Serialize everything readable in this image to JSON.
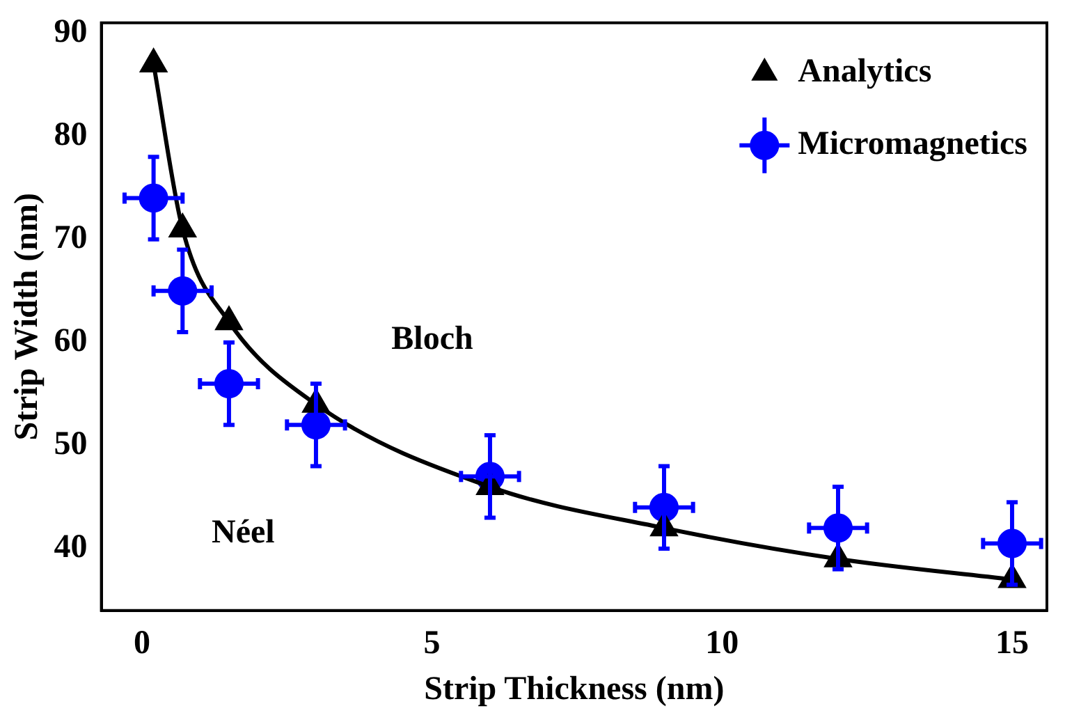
{
  "chart_data": {
    "type": "scatter",
    "xlabel": "Strip Thickness (nm)",
    "ylabel": "Strip Width (nm)",
    "xlim": [
      -0.7,
      15.6
    ],
    "xticks": [
      0,
      5,
      10,
      15
    ],
    "ylim": [
      34,
      91
    ],
    "yticks": [
      40,
      50,
      60,
      70,
      80,
      90
    ],
    "grid": false,
    "legend": "top right",
    "series": [
      {
        "name": "Analytics",
        "type": "line",
        "marker": "triangle",
        "color": "#000000",
        "x": [
          0.2,
          0.7,
          1.5,
          3,
          6,
          9,
          12,
          15
        ],
        "values": [
          87,
          71,
          62,
          54,
          46,
          42,
          39,
          37
        ]
      },
      {
        "name": "Micromagnetics",
        "marker": "circle",
        "color": "#0000ff",
        "x": [
          0.2,
          0.7,
          1.5,
          3,
          6,
          9,
          12,
          15
        ],
        "values": [
          74,
          65,
          56,
          52,
          47,
          44,
          42,
          40.5
        ],
        "errors": [
          4,
          4,
          4,
          4,
          4,
          4,
          4,
          4
        ],
        "xerrors": [
          0.5,
          0.5,
          0.5,
          0.5,
          0.5,
          0.5,
          0.5,
          0.5
        ]
      }
    ],
    "annotations": [
      "Bloch",
      "Néel"
    ]
  }
}
